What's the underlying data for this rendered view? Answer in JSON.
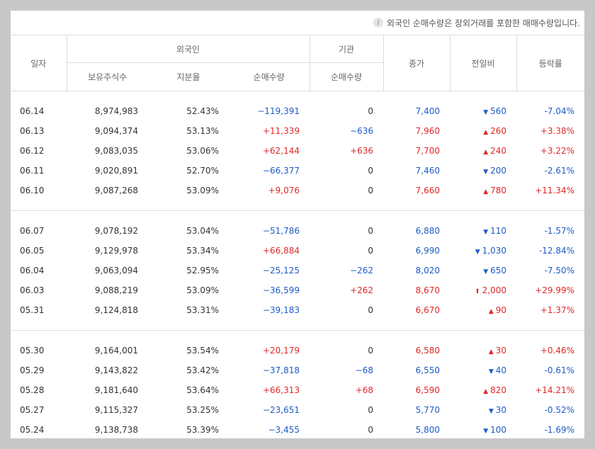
{
  "notice": {
    "icon": "info-icon",
    "text": "외국인 순매수량은 장외거래를 포함한 매매수량입니다."
  },
  "headers": {
    "date": "일자",
    "foreign": "외국인",
    "institution": "기관",
    "close": "종가",
    "change": "전일비",
    "rate": "등락률",
    "shares_held": "보유주식수",
    "share_ratio": "지분율",
    "foreign_net": "순매수량",
    "inst_net": "순매수량"
  },
  "colors": {
    "up": "#e02828",
    "down": "#1e5bc6"
  },
  "groups": [
    {
      "rows": [
        {
          "date": "06.14",
          "held": "8,974,983",
          "ratio": "52.43%",
          "fnet": "−119,391",
          "fdir": "down",
          "inet": "0",
          "idir": "none",
          "close": "7,400",
          "cdir": "down",
          "tri": "▼",
          "change": "560",
          "rate": "-7.04%"
        },
        {
          "date": "06.13",
          "held": "9,094,374",
          "ratio": "53.13%",
          "fnet": "+11,339",
          "fdir": "up",
          "inet": "−636",
          "idir": "down",
          "close": "7,960",
          "cdir": "up",
          "tri": "▲",
          "change": "260",
          "rate": "+3.38%"
        },
        {
          "date": "06.12",
          "held": "9,083,035",
          "ratio": "53.06%",
          "fnet": "+62,144",
          "fdir": "up",
          "inet": "+636",
          "idir": "up",
          "close": "7,700",
          "cdir": "up",
          "tri": "▲",
          "change": "240",
          "rate": "+3.22%"
        },
        {
          "date": "06.11",
          "held": "9,020,891",
          "ratio": "52.70%",
          "fnet": "−66,377",
          "fdir": "down",
          "inet": "0",
          "idir": "none",
          "close": "7,460",
          "cdir": "down",
          "tri": "▼",
          "change": "200",
          "rate": "-2.61%"
        },
        {
          "date": "06.10",
          "held": "9,087,268",
          "ratio": "53.09%",
          "fnet": "+9,076",
          "fdir": "up",
          "inet": "0",
          "idir": "none",
          "close": "7,660",
          "cdir": "up",
          "tri": "▲",
          "change": "780",
          "rate": "+11.34%"
        }
      ]
    },
    {
      "rows": [
        {
          "date": "06.07",
          "held": "9,078,192",
          "ratio": "53.04%",
          "fnet": "−51,786",
          "fdir": "down",
          "inet": "0",
          "idir": "none",
          "close": "6,880",
          "cdir": "down",
          "tri": "▼",
          "change": "110",
          "rate": "-1.57%"
        },
        {
          "date": "06.05",
          "held": "9,129,978",
          "ratio": "53.34%",
          "fnet": "+66,884",
          "fdir": "up",
          "inet": "0",
          "idir": "none",
          "close": "6,990",
          "cdir": "down",
          "tri": "▼",
          "change": "1,030",
          "rate": "-12.84%"
        },
        {
          "date": "06.04",
          "held": "9,063,094",
          "ratio": "52.95%",
          "fnet": "−25,125",
          "fdir": "down",
          "inet": "−262",
          "idir": "down",
          "close": "8,020",
          "cdir": "down",
          "tri": "▼",
          "change": "650",
          "rate": "-7.50%"
        },
        {
          "date": "06.03",
          "held": "9,088,219",
          "ratio": "53.09%",
          "fnet": "−36,599",
          "fdir": "down",
          "inet": "+262",
          "idir": "up",
          "close": "8,670",
          "cdir": "up",
          "tri": "⬆",
          "change": "2,000",
          "rate": "+29.99%"
        },
        {
          "date": "05.31",
          "held": "9,124,818",
          "ratio": "53.31%",
          "fnet": "−39,183",
          "fdir": "down",
          "inet": "0",
          "idir": "none",
          "close": "6,670",
          "cdir": "up",
          "tri": "▲",
          "change": "90",
          "rate": "+1.37%"
        }
      ]
    },
    {
      "rows": [
        {
          "date": "05.30",
          "held": "9,164,001",
          "ratio": "53.54%",
          "fnet": "+20,179",
          "fdir": "up",
          "inet": "0",
          "idir": "none",
          "close": "6,580",
          "cdir": "up",
          "tri": "▲",
          "change": "30",
          "rate": "+0.46%"
        },
        {
          "date": "05.29",
          "held": "9,143,822",
          "ratio": "53.42%",
          "fnet": "−37,818",
          "fdir": "down",
          "inet": "−68",
          "idir": "down",
          "close": "6,550",
          "cdir": "down",
          "tri": "▼",
          "change": "40",
          "rate": "-0.61%"
        },
        {
          "date": "05.28",
          "held": "9,181,640",
          "ratio": "53.64%",
          "fnet": "+66,313",
          "fdir": "up",
          "inet": "+68",
          "idir": "up",
          "close": "6,590",
          "cdir": "up",
          "tri": "▲",
          "change": "820",
          "rate": "+14.21%"
        },
        {
          "date": "05.27",
          "held": "9,115,327",
          "ratio": "53.25%",
          "fnet": "−23,651",
          "fdir": "down",
          "inet": "0",
          "idir": "none",
          "close": "5,770",
          "cdir": "down",
          "tri": "▼",
          "change": "30",
          "rate": "-0.52%"
        },
        {
          "date": "05.24",
          "held": "9,138,738",
          "ratio": "53.39%",
          "fnet": "−3,455",
          "fdir": "down",
          "inet": "0",
          "idir": "none",
          "close": "5,800",
          "cdir": "down",
          "tri": "▼",
          "change": "100",
          "rate": "-1.69%"
        }
      ]
    }
  ]
}
